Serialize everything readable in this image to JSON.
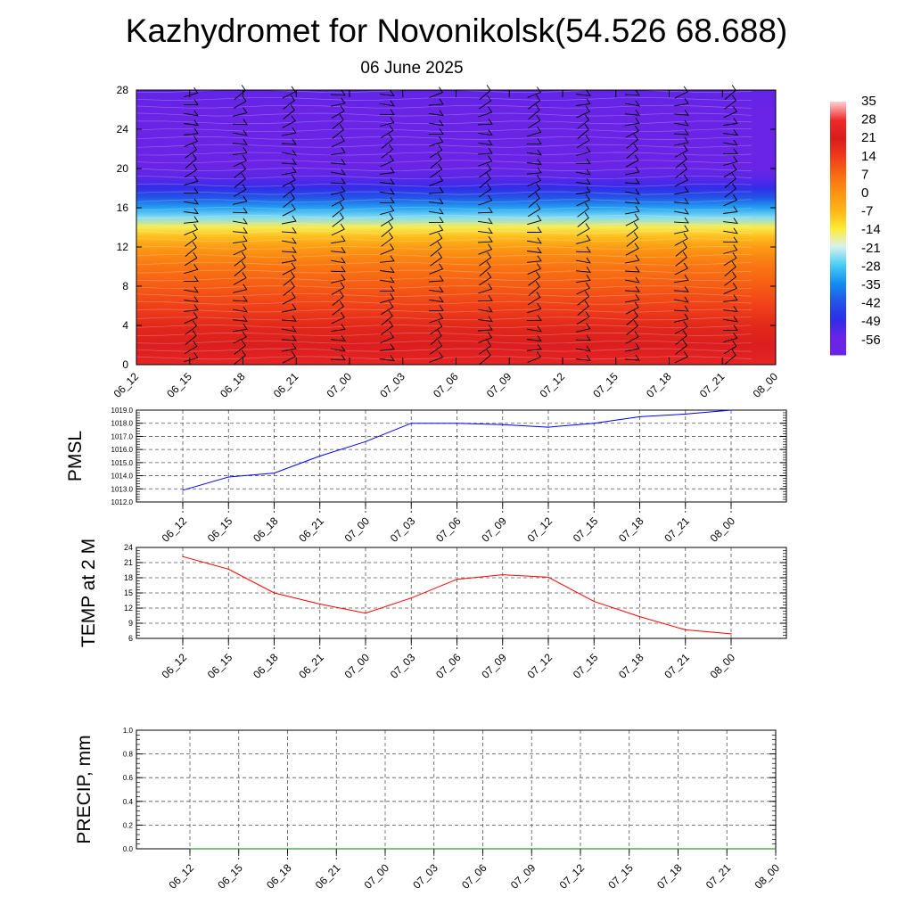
{
  "title": "Kazhydromet for Novonikolsk(54.526 68.688)",
  "subtitle": "06 June 2025",
  "time_labels": [
    "06_12",
    "06_15",
    "06_18",
    "06_21",
    "07_00",
    "07_03",
    "07_06",
    "07_09",
    "07_12",
    "07_15",
    "07_18",
    "07_21",
    "08_00"
  ],
  "chart_data": [
    {
      "type": "heatmap",
      "title": "",
      "xlabel": "",
      "ylabel": "",
      "x": [
        "06_12",
        "06_15",
        "06_18",
        "06_21",
        "07_00",
        "07_03",
        "07_06",
        "07_09",
        "07_12",
        "07_15",
        "07_18",
        "07_21",
        "08_00"
      ],
      "ylim": [
        0,
        28
      ],
      "yticks": [
        0,
        4,
        8,
        12,
        16,
        20,
        24,
        28
      ],
      "profile_levels": [
        0,
        2,
        4,
        6,
        8,
        10,
        11,
        12,
        13,
        14,
        15,
        16,
        17,
        18,
        19,
        20,
        22,
        24,
        26,
        28
      ],
      "temperature_profile": [
        25,
        22,
        18,
        13,
        9,
        5,
        2,
        -2,
        -8,
        -15,
        -25,
        -33,
        -42,
        -50,
        -54,
        -56,
        -57,
        -60,
        -58,
        -55
      ],
      "colorbar": {
        "labels": [
          "35",
          "28",
          "21",
          "14",
          "7",
          "0",
          "-7",
          "-14",
          "-21",
          "-28",
          "-35",
          "-42",
          "-49",
          "-56"
        ],
        "colors": [
          "#fdcfd2",
          "#f02a2a",
          "#d81c1c",
          "#ef3a1a",
          "#f86a12",
          "#fb9212",
          "#fdb418",
          "#feeb34",
          "#d8f2ee",
          "#4bcdf4",
          "#1390f0",
          "#2257e6",
          "#2a2ee8",
          "#6a24e6"
        ]
      },
      "wind_barbs": true
    },
    {
      "type": "line",
      "ylabel": "PMSL",
      "x": [
        "06_12",
        "06_15",
        "06_18",
        "06_21",
        "07_00",
        "07_03",
        "07_06",
        "07_09",
        "07_12",
        "07_15",
        "07_18",
        "07_21",
        "08_00"
      ],
      "ylim": [
        1012.0,
        1019.0
      ],
      "yticks": [
        "1012.0",
        "1013.0",
        "1014.0",
        "1015.0",
        "1016.0",
        "1017.0",
        "1018.0",
        "1019.0"
      ],
      "series": [
        {
          "values": [
            1012.9,
            1013.9,
            1014.2,
            1015.5,
            1016.6,
            1018.0,
            1018.0,
            1017.9,
            1017.7,
            1018.0,
            1018.5,
            1018.7,
            1019.0
          ],
          "color": "#0000ff"
        }
      ],
      "grid": true
    },
    {
      "type": "line",
      "ylabel": "TEMP at 2 M",
      "x": [
        "06_12",
        "06_15",
        "06_18",
        "06_21",
        "07_00",
        "07_03",
        "07_06",
        "07_09",
        "07_12",
        "07_15",
        "07_18",
        "07_21",
        "08_00"
      ],
      "ylim": [
        6,
        24
      ],
      "yticks": [
        "6",
        "9",
        "12",
        "15",
        "18",
        "21",
        "24"
      ],
      "series": [
        {
          "values": [
            22.2,
            19.7,
            15.0,
            12.8,
            11.0,
            14.0,
            17.7,
            18.6,
            18.1,
            13.3,
            10.3,
            7.7,
            6.9
          ],
          "color": "#ff0000"
        }
      ],
      "grid": true
    },
    {
      "type": "line",
      "ylabel": "PRECIP, mm",
      "x": [
        "06_12",
        "06_15",
        "06_18",
        "06_21",
        "07_00",
        "07_03",
        "07_06",
        "07_09",
        "07_12",
        "07_15",
        "07_18",
        "07_21",
        "08_00"
      ],
      "ylim": [
        0.0,
        1.0
      ],
      "yticks": [
        "0.0",
        "0.2",
        "0.4",
        "0.6",
        "0.8",
        "1.0"
      ],
      "series": [
        {
          "values": [
            0,
            0,
            0,
            0,
            0,
            0,
            0,
            0,
            0,
            0,
            0,
            0,
            0
          ],
          "color": "#008000"
        }
      ],
      "grid": true
    }
  ]
}
